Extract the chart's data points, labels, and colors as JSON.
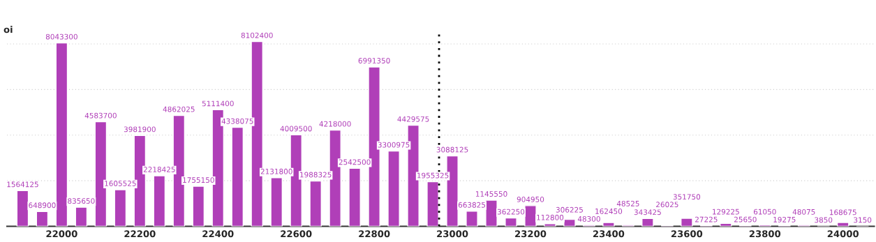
{
  "chart_data": {
    "type": "bar",
    "ylabel": "oi",
    "x": [
      21900,
      21950,
      22000,
      22050,
      22100,
      22150,
      22200,
      22250,
      22300,
      22350,
      22400,
      22450,
      22500,
      22550,
      22600,
      22650,
      22700,
      22750,
      22800,
      22850,
      22900,
      22950,
      23000,
      23050,
      23100,
      23150,
      23200,
      23250,
      23300,
      23350,
      23400,
      23450,
      23500,
      23550,
      23600,
      23650,
      23700,
      23750,
      23800,
      23850,
      23900,
      23950,
      24000,
      24050
    ],
    "values": [
      1564125,
      648900,
      8043300,
      835650,
      4583700,
      1605525,
      3981900,
      2218425,
      4862025,
      1755150,
      5111400,
      4338075,
      8102400,
      2131800,
      4009500,
      1988325,
      4218000,
      2542500,
      6991350,
      3300975,
      4429575,
      1955325,
      3088125,
      663825,
      1145550,
      362250,
      904950,
      112800,
      306225,
      48300,
      162450,
      48525,
      343425,
      26025,
      351750,
      27225,
      129225,
      25650,
      61050,
      19275,
      48075,
      3850,
      168675,
      3150
    ],
    "color": "#b03fb8",
    "xlim": [
      21860,
      24080
    ],
    "xticks": [
      22000,
      22200,
      22400,
      22600,
      22800,
      23000,
      23200,
      23400,
      23600,
      23800,
      24000
    ],
    "ylim": [
      0,
      8600000
    ],
    "yticks": [
      {
        "value": 2000000,
        "label": null
      },
      {
        "value": 4000000,
        "label": null
      },
      {
        "value": 6000000,
        "label": null
      },
      {
        "value": 8000000,
        "label": null
      }
    ],
    "ref_lines": [
      {
        "axis": "x",
        "value": 22966,
        "color": "#000000",
        "line_style": "dotted"
      }
    ],
    "data_labels": true,
    "grid": "y",
    "tick_labels": "x"
  }
}
